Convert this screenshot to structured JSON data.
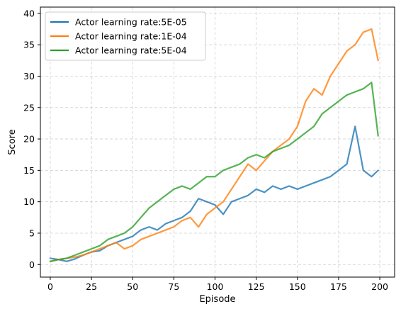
{
  "chart_data": {
    "type": "line",
    "xlabel": "Episode",
    "ylabel": "Score",
    "xlim": [
      -6,
      209
    ],
    "ylim": [
      -2,
      41
    ],
    "xticks": [
      0,
      25,
      50,
      75,
      100,
      125,
      150,
      175,
      200
    ],
    "yticks": [
      0,
      5,
      10,
      15,
      20,
      25,
      30,
      35,
      40
    ],
    "grid": true,
    "legend_position": "top-left",
    "series": [
      {
        "name": "Actor learning rate:5E-05",
        "color": "#1f77b4",
        "points": [
          [
            0,
            1.0
          ],
          [
            5,
            0.8
          ],
          [
            10,
            0.5
          ],
          [
            15,
            0.9
          ],
          [
            20,
            1.5
          ],
          [
            25,
            2.0
          ],
          [
            30,
            2.2
          ],
          [
            35,
            3.0
          ],
          [
            40,
            3.5
          ],
          [
            45,
            4.0
          ],
          [
            50,
            4.5
          ],
          [
            55,
            5.5
          ],
          [
            60,
            6.0
          ],
          [
            65,
            5.5
          ],
          [
            70,
            6.5
          ],
          [
            75,
            7.0
          ],
          [
            80,
            7.5
          ],
          [
            85,
            8.5
          ],
          [
            90,
            10.5
          ],
          [
            95,
            10.0
          ],
          [
            100,
            9.5
          ],
          [
            105,
            8.0
          ],
          [
            110,
            10.0
          ],
          [
            115,
            10.5
          ],
          [
            120,
            11.0
          ],
          [
            125,
            12.0
          ],
          [
            130,
            11.5
          ],
          [
            135,
            12.5
          ],
          [
            140,
            12.0
          ],
          [
            145,
            12.5
          ],
          [
            150,
            12.0
          ],
          [
            155,
            12.5
          ],
          [
            160,
            13.0
          ],
          [
            165,
            13.5
          ],
          [
            170,
            14.0
          ],
          [
            175,
            15.0
          ],
          [
            180,
            16.0
          ],
          [
            185,
            22.0
          ],
          [
            190,
            15.0
          ],
          [
            195,
            14.0
          ],
          [
            199,
            15.0
          ]
        ]
      },
      {
        "name": "Actor learning rate:1E-04",
        "color": "#ff7f0e",
        "points": [
          [
            0,
            0.5
          ],
          [
            5,
            0.8
          ],
          [
            10,
            1.0
          ],
          [
            15,
            1.2
          ],
          [
            20,
            1.5
          ],
          [
            25,
            2.0
          ],
          [
            30,
            2.5
          ],
          [
            35,
            3.0
          ],
          [
            40,
            3.5
          ],
          [
            45,
            2.5
          ],
          [
            50,
            3.0
          ],
          [
            55,
            4.0
          ],
          [
            60,
            4.5
          ],
          [
            65,
            5.0
          ],
          [
            70,
            5.5
          ],
          [
            75,
            6.0
          ],
          [
            80,
            7.0
          ],
          [
            85,
            7.5
          ],
          [
            90,
            6.0
          ],
          [
            95,
            8.0
          ],
          [
            100,
            9.0
          ],
          [
            105,
            10.0
          ],
          [
            110,
            12.0
          ],
          [
            115,
            14.0
          ],
          [
            120,
            16.0
          ],
          [
            125,
            15.0
          ],
          [
            130,
            16.5
          ],
          [
            135,
            18.0
          ],
          [
            140,
            19.0
          ],
          [
            145,
            20.0
          ],
          [
            150,
            22.0
          ],
          [
            155,
            26.0
          ],
          [
            160,
            28.0
          ],
          [
            165,
            27.0
          ],
          [
            170,
            30.0
          ],
          [
            175,
            32.0
          ],
          [
            180,
            34.0
          ],
          [
            185,
            35.0
          ],
          [
            190,
            37.0
          ],
          [
            195,
            37.5
          ],
          [
            199,
            32.5
          ]
        ]
      },
      {
        "name": "Actor learning rate:5E-04",
        "color": "#2ca02c",
        "points": [
          [
            0,
            0.5
          ],
          [
            5,
            0.8
          ],
          [
            10,
            1.0
          ],
          [
            15,
            1.5
          ],
          [
            20,
            2.0
          ],
          [
            25,
            2.5
          ],
          [
            30,
            3.0
          ],
          [
            35,
            4.0
          ],
          [
            40,
            4.5
          ],
          [
            45,
            5.0
          ],
          [
            50,
            6.0
          ],
          [
            55,
            7.5
          ],
          [
            60,
            9.0
          ],
          [
            65,
            10.0
          ],
          [
            70,
            11.0
          ],
          [
            75,
            12.0
          ],
          [
            80,
            12.5
          ],
          [
            85,
            12.0
          ],
          [
            90,
            13.0
          ],
          [
            95,
            14.0
          ],
          [
            100,
            14.0
          ],
          [
            105,
            15.0
          ],
          [
            110,
            15.5
          ],
          [
            115,
            16.0
          ],
          [
            120,
            17.0
          ],
          [
            125,
            17.5
          ],
          [
            130,
            17.0
          ],
          [
            135,
            18.0
          ],
          [
            140,
            18.5
          ],
          [
            145,
            19.0
          ],
          [
            150,
            20.0
          ],
          [
            155,
            21.0
          ],
          [
            160,
            22.0
          ],
          [
            165,
            24.0
          ],
          [
            170,
            25.0
          ],
          [
            175,
            26.0
          ],
          [
            180,
            27.0
          ],
          [
            185,
            27.5
          ],
          [
            190,
            28.0
          ],
          [
            195,
            29.0
          ],
          [
            199,
            20.5
          ]
        ]
      }
    ]
  }
}
